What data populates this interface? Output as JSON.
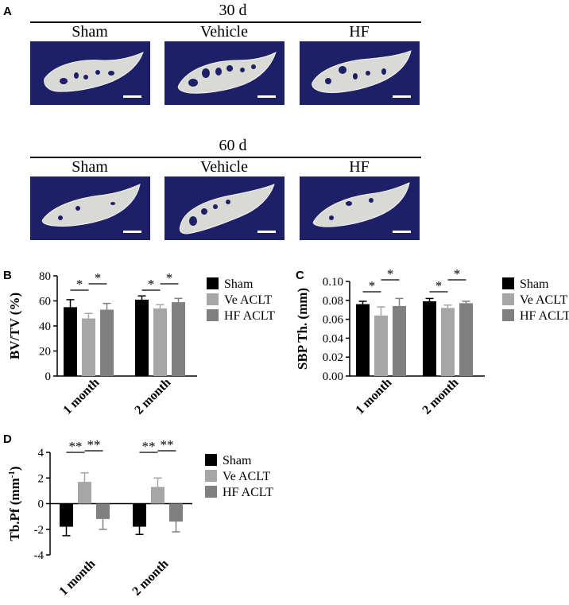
{
  "panel_a": {
    "letter": "A",
    "rows": [
      {
        "title": "30 d",
        "groups": [
          "Sham",
          "Vehicle",
          "HF"
        ]
      },
      {
        "title": "60 d",
        "groups": [
          "Sham",
          "Vehicle",
          "HF"
        ]
      }
    ]
  },
  "panel_b_letter": "B",
  "panel_c_letter": "C",
  "panel_d_letter": "D",
  "colors": {
    "sham": "#000000",
    "ve_aclt": "#a6a6a6",
    "hf_aclt": "#808080",
    "tile_bg": "#1d1f67",
    "bone": "#d9d9d6"
  },
  "chart_data": [
    {
      "type": "bar",
      "panel": "B",
      "categories": [
        "1 month",
        "2 month"
      ],
      "ylabel": "BV/TV (%)",
      "ylim": [
        0,
        80
      ],
      "yticks": [
        0,
        20,
        40,
        60,
        80
      ],
      "legend": [
        "Sham",
        "Ve ACLT",
        "HF ACLT"
      ],
      "series": [
        {
          "name": "Sham",
          "values": [
            55,
            61
          ],
          "errors": [
            6,
            3
          ]
        },
        {
          "name": "Ve ACLT",
          "values": [
            46,
            54
          ],
          "errors": [
            4,
            3
          ]
        },
        {
          "name": "HF ACLT",
          "values": [
            53,
            59
          ],
          "errors": [
            5,
            3
          ]
        }
      ],
      "significance": [
        {
          "category": 0,
          "from": 0,
          "to": 1,
          "label": "*"
        },
        {
          "category": 0,
          "from": 1,
          "to": 2,
          "label": "*"
        },
        {
          "category": 1,
          "from": 0,
          "to": 1,
          "label": "*"
        },
        {
          "category": 1,
          "from": 1,
          "to": 2,
          "label": "*"
        }
      ]
    },
    {
      "type": "bar",
      "panel": "C",
      "categories": [
        "1 month",
        "2 month"
      ],
      "ylabel": "SBP Th. (mm)",
      "ylim": [
        0,
        0.1
      ],
      "yticks": [
        "0.00",
        "0.02",
        "0.04",
        "0.06",
        "0.08",
        "0.10"
      ],
      "legend": [
        "Sham",
        "Ve ACLT",
        "HF ACLT"
      ],
      "series": [
        {
          "name": "Sham",
          "values": [
            0.076,
            0.079
          ],
          "errors": [
            0.003,
            0.003
          ]
        },
        {
          "name": "Ve ACLT",
          "values": [
            0.064,
            0.072
          ],
          "errors": [
            0.009,
            0.003
          ]
        },
        {
          "name": "HF ACLT",
          "values": [
            0.074,
            0.077
          ],
          "errors": [
            0.008,
            0.002
          ]
        }
      ],
      "significance": [
        {
          "category": 0,
          "from": 0,
          "to": 1,
          "label": "*"
        },
        {
          "category": 0,
          "from": 1,
          "to": 2,
          "label": "*"
        },
        {
          "category": 1,
          "from": 0,
          "to": 1,
          "label": "*"
        },
        {
          "category": 1,
          "from": 1,
          "to": 2,
          "label": "*"
        }
      ]
    },
    {
      "type": "bar",
      "panel": "D",
      "categories": [
        "1 month",
        "2 month"
      ],
      "ylabel": "Tb.Pf (mm",
      "ylabel_sup": "-1",
      "ylabel_end": ")",
      "ylim": [
        -4,
        4
      ],
      "yticks": [
        -4,
        -2,
        0,
        2,
        4
      ],
      "legend": [
        "Sham",
        "Ve ACLT",
        "HF ACLT"
      ],
      "series": [
        {
          "name": "Sham",
          "values": [
            -1.8,
            -1.8
          ],
          "errors": [
            0.7,
            0.6
          ]
        },
        {
          "name": "Ve ACLT",
          "values": [
            1.7,
            1.3
          ],
          "errors": [
            0.7,
            0.7
          ]
        },
        {
          "name": "HF ACLT",
          "values": [
            -1.2,
            -1.4
          ],
          "errors": [
            0.8,
            0.8
          ]
        }
      ],
      "significance": [
        {
          "category": 0,
          "from": 0,
          "to": 1,
          "label": "**"
        },
        {
          "category": 0,
          "from": 1,
          "to": 2,
          "label": "**"
        },
        {
          "category": 1,
          "from": 0,
          "to": 1,
          "label": "**"
        },
        {
          "category": 1,
          "from": 1,
          "to": 2,
          "label": "**"
        }
      ]
    }
  ]
}
